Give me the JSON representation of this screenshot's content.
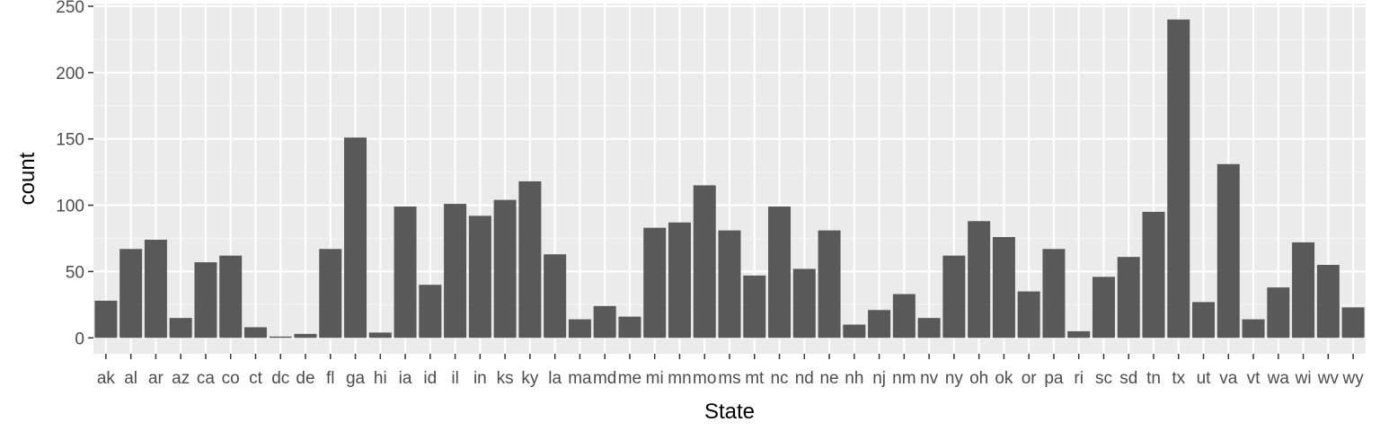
{
  "chart_data": {
    "type": "bar",
    "xlabel": "State",
    "ylabel": "count",
    "ylim": [
      -12,
      252
    ],
    "yticks": [
      0,
      50,
      100,
      150,
      200,
      250
    ],
    "grid": true,
    "categories": [
      "ak",
      "al",
      "ar",
      "az",
      "ca",
      "co",
      "ct",
      "dc",
      "de",
      "fl",
      "ga",
      "hi",
      "ia",
      "id",
      "il",
      "in",
      "ks",
      "ky",
      "la",
      "ma",
      "md",
      "me",
      "mi",
      "mn",
      "mo",
      "ms",
      "mt",
      "nc",
      "nd",
      "ne",
      "nh",
      "nj",
      "nm",
      "nv",
      "ny",
      "oh",
      "ok",
      "or",
      "pa",
      "ri",
      "sc",
      "sd",
      "tn",
      "tx",
      "ut",
      "va",
      "vt",
      "wa",
      "wi",
      "wv",
      "wy"
    ],
    "values": [
      28,
      67,
      74,
      15,
      57,
      62,
      8,
      1,
      3,
      67,
      151,
      4,
      99,
      40,
      101,
      92,
      104,
      118,
      63,
      14,
      24,
      16,
      83,
      87,
      115,
      81,
      47,
      99,
      52,
      81,
      10,
      21,
      33,
      15,
      62,
      88,
      76,
      35,
      67,
      5,
      46,
      61,
      95,
      240,
      27,
      131,
      14,
      38,
      72,
      55,
      23
    ],
    "colors": {
      "panel_background": "#ebebeb",
      "grid_major": "#ffffff",
      "grid_minor": "#f5f5f5",
      "bar_fill": "#595959",
      "tick": "#333333"
    }
  }
}
